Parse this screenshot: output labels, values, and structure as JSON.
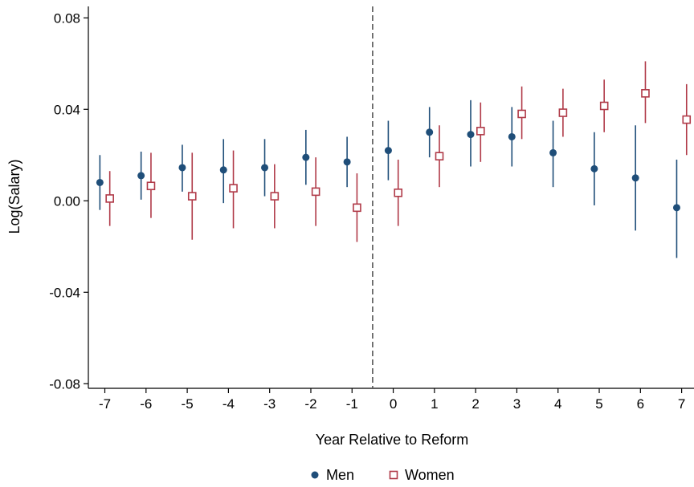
{
  "chart_data": {
    "type": "scatter",
    "title": "",
    "xlabel": "Year Relative to Reform",
    "ylabel": "Log(Salary)",
    "x": [
      -7,
      -6,
      -5,
      -4,
      -3,
      -2,
      -1,
      0,
      1,
      2,
      3,
      4,
      5,
      6,
      7
    ],
    "x_tick_labels": [
      "-7",
      "-6",
      "-5",
      "-4",
      "-3",
      "-2",
      "-1",
      "0",
      "1",
      "2",
      "3",
      "4",
      "5",
      "6",
      "7"
    ],
    "y_ticks": [
      -0.08,
      -0.04,
      0.0,
      0.04,
      0.08
    ],
    "y_tick_labels": [
      "-0.08",
      "-0.04",
      "0.00",
      "0.04",
      "0.08"
    ],
    "ylim": [
      -0.082,
      0.085
    ],
    "xlim": [
      -7.4,
      7.3
    ],
    "vline_x": -0.5,
    "grid": false,
    "legend_position": "bottom",
    "series": [
      {
        "name": "Men",
        "marker": "filled-circle",
        "color": "#1f4e79",
        "values": [
          0.008,
          0.011,
          0.0145,
          0.0135,
          0.0145,
          0.019,
          0.017,
          0.022,
          0.03,
          0.029,
          0.028,
          0.021,
          0.014,
          0.01,
          -0.003
        ],
        "ci_low": [
          -0.004,
          0.0005,
          0.004,
          -0.001,
          0.002,
          0.007,
          0.006,
          0.009,
          0.019,
          0.015,
          0.015,
          0.006,
          -0.002,
          -0.013,
          -0.025
        ],
        "ci_high": [
          0.02,
          0.0215,
          0.0245,
          0.027,
          0.027,
          0.031,
          0.028,
          0.035,
          0.041,
          0.044,
          0.041,
          0.035,
          0.03,
          0.033,
          0.018
        ]
      },
      {
        "name": "Women",
        "marker": "hollow-square",
        "color": "#b03a48",
        "values": [
          0.001,
          0.0065,
          0.002,
          0.0055,
          0.002,
          0.004,
          -0.003,
          0.0035,
          0.0195,
          0.0305,
          0.038,
          0.0385,
          0.0415,
          0.047,
          0.0355
        ],
        "ci_low": [
          -0.011,
          -0.0075,
          -0.017,
          -0.012,
          -0.012,
          -0.011,
          -0.018,
          -0.011,
          0.006,
          0.017,
          0.027,
          0.028,
          0.03,
          0.034,
          0.02
        ],
        "ci_high": [
          0.013,
          0.021,
          0.021,
          0.022,
          0.016,
          0.019,
          0.012,
          0.018,
          0.033,
          0.043,
          0.05,
          0.049,
          0.053,
          0.061,
          0.051
        ]
      }
    ]
  }
}
